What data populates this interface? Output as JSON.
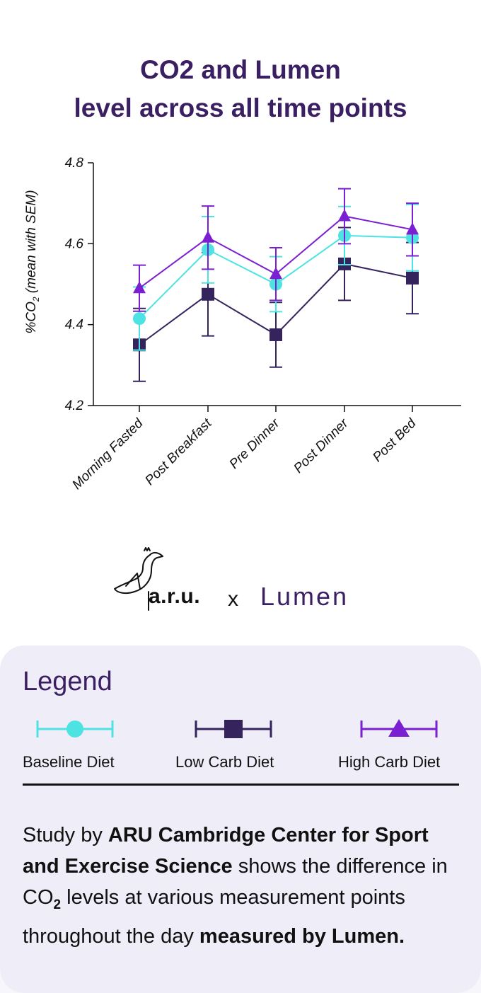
{
  "title_line1": "CO2 and Lumen",
  "title_line2": "level across all time points",
  "chart_data": {
    "type": "line",
    "ylabel_pre": "%CO",
    "ylabel_sub": "2",
    "ylabel_post": " (mean with SEM)",
    "ylim": [
      4.2,
      4.8
    ],
    "yticks": [
      "4.2",
      "4.4",
      "4.6",
      "4.8"
    ],
    "ytick_values": [
      4.2,
      4.4,
      4.6,
      4.8
    ],
    "categories": [
      "Morning Fasted",
      "Post Breakfast",
      "Pre Dinner",
      "Post Dinner",
      "Post Bed"
    ],
    "series": [
      {
        "name": "Low Carb Diet",
        "color": "#35235d",
        "marker": "square",
        "values": [
          4.35,
          4.475,
          4.375,
          4.55,
          4.515
        ],
        "sem": [
          0.09,
          0.103,
          0.08,
          0.09,
          0.088
        ]
      },
      {
        "name": "Baseline Diet",
        "color": "#4de3e3",
        "marker": "circle",
        "values": [
          4.415,
          4.585,
          4.5,
          4.62,
          4.615
        ],
        "sem": [
          0.078,
          0.082,
          0.068,
          0.072,
          0.082
        ]
      },
      {
        "name": "High Carb Diet",
        "color": "#7a1fd1",
        "marker": "triangle",
        "values": [
          4.49,
          4.615,
          4.525,
          4.668,
          4.635
        ],
        "sem": [
          0.057,
          0.078,
          0.065,
          0.068,
          0.065
        ]
      }
    ],
    "legend_position": "bottom",
    "grid": false
  },
  "brands": {
    "aru": "a.r.u.",
    "separator": "x",
    "lumen": "Lumen"
  },
  "legend": {
    "title": "Legend",
    "items": [
      {
        "label": "Baseline Diet",
        "color": "#4de3e3",
        "marker": "circle"
      },
      {
        "label": "Low Carb Diet",
        "color": "#35235d",
        "marker": "square"
      },
      {
        "label": "High Carb Diet",
        "color": "#7a1fd1",
        "marker": "triangle"
      }
    ]
  },
  "description": {
    "t1": "Study by ",
    "b1": "ARU Cambridge Center for Sport and Exercise Science",
    "t2": " shows the difference in CO",
    "t2_sub": "2",
    "t3": " levels at various measurement points throughout the day ",
    "b2": "measured by Lumen."
  }
}
